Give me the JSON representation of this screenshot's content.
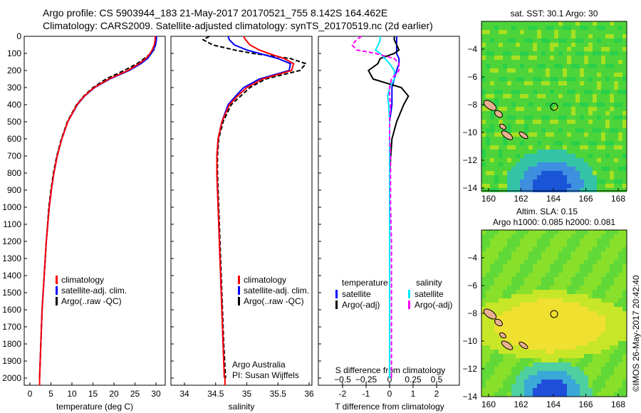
{
  "header": {
    "line1": "Argo profile: CS 5903944_183 21-May-2017 20170521_755 8.142S 164.462E",
    "line2": "Climatology: CARS2009. Satellite-adjusted climatology: synTS_20170519.nc (2d earlier)"
  },
  "footer": {
    "credit": "Argo Australia",
    "pi": "PI: Susan Wijffels",
    "stamp": "©IMOS 26-May-2017 20:42:40"
  },
  "colors": {
    "climatology": "#ff0000",
    "satellite": "#0000ff",
    "argo": "#000000",
    "sal_sat": "#00e5ff",
    "sal_argo": "#ff00ff"
  },
  "chart_data": [
    {
      "type": "line",
      "title": "",
      "xlabel": "temperature (deg C)",
      "ylabel": "",
      "xlim": [
        -2,
        31
      ],
      "ylim": [
        2050,
        0
      ],
      "xticks": [
        "0",
        "5",
        "10",
        "15",
        "20",
        "25",
        "30"
      ],
      "yticks": [
        "0",
        "100",
        "200",
        "300",
        "400",
        "500",
        "600",
        "700",
        "800",
        "900",
        "1000",
        "1100",
        "1200",
        "1300",
        "1400",
        "1500",
        "1600",
        "1700",
        "1800",
        "1900",
        "2000"
      ],
      "legend": [
        "climatology",
        "satellite-adj. clim.",
        "Argo(..raw -QC)"
      ],
      "depth": [
        0,
        20,
        50,
        80,
        100,
        130,
        160,
        200,
        250,
        300,
        350,
        400,
        500,
        600,
        700,
        800,
        900,
        1000,
        1200,
        1400,
        1600,
        1800,
        2000
      ],
      "series": [
        {
          "name": "climatology",
          "values": [
            29.8,
            29.8,
            29.6,
            29.1,
            28.6,
            27.6,
            26.0,
            23.3,
            18.8,
            15.3,
            12.9,
            11.2,
            9.0,
            7.6,
            6.5,
            5.7,
            5.1,
            4.6,
            3.9,
            3.4,
            2.9,
            2.6,
            2.3
          ]
        },
        {
          "name": "satellite-adj. clim.",
          "values": [
            30.1,
            30.1,
            29.9,
            29.4,
            28.9,
            28.0,
            26.4,
            23.6,
            19.0,
            15.4,
            13.0,
            11.3,
            9.0,
            7.6,
            6.5,
            5.7,
            5.1,
            4.6,
            3.9,
            3.4,
            2.9,
            2.6,
            2.3
          ]
        },
        {
          "name": "Argo(..raw -QC)",
          "values": [
            30.0,
            30.0,
            29.9,
            29.5,
            28.8,
            27.2,
            25.5,
            22.4,
            18.1,
            15.0,
            12.8,
            11.1,
            8.9,
            7.5,
            6.4,
            5.6,
            5.0,
            4.5,
            3.9,
            3.4,
            2.9,
            2.6,
            2.3
          ]
        }
      ]
    },
    {
      "type": "line",
      "xlabel": "salinity",
      "xlim": [
        33.75,
        36.05
      ],
      "ylim": [
        2050,
        0
      ],
      "xticks": [
        "34",
        "34.5",
        "35",
        "35.5",
        "36"
      ],
      "legend": [
        "climatology",
        "satellite-adj. clim.",
        "Argo(..raw -QC)"
      ],
      "depth": [
        0,
        20,
        50,
        80,
        100,
        130,
        160,
        200,
        250,
        300,
        350,
        400,
        500,
        600,
        700,
        800,
        900,
        1000,
        1200,
        1400,
        1600,
        1800,
        2000
      ],
      "series": [
        {
          "name": "climatology",
          "values": [
            34.95,
            34.98,
            35.05,
            35.2,
            35.35,
            35.6,
            35.75,
            35.72,
            35.25,
            35.0,
            34.85,
            34.72,
            34.6,
            34.54,
            34.52,
            34.52,
            34.53,
            34.54,
            34.56,
            34.58,
            34.6,
            34.62,
            34.64
          ]
        },
        {
          "name": "satellite-adj. clim.",
          "values": [
            34.7,
            34.72,
            34.8,
            35.0,
            35.2,
            35.5,
            35.7,
            35.68,
            35.2,
            34.95,
            34.82,
            34.7,
            34.6,
            34.54,
            34.52,
            34.52,
            34.53,
            34.54,
            34.56,
            34.58,
            34.6,
            34.62,
            34.64
          ]
        },
        {
          "name": "Argo(..raw -QC)",
          "values": [
            34.4,
            34.3,
            34.45,
            34.8,
            35.1,
            35.7,
            35.95,
            35.85,
            35.3,
            35.05,
            34.9,
            34.75,
            34.62,
            34.55,
            34.53,
            34.53,
            34.54,
            34.55,
            34.57,
            34.59,
            34.61,
            34.63,
            34.66
          ]
        }
      ]
    },
    {
      "type": "line",
      "xlabel": "T difference from climatology",
      "x2label": "S difference from climatology",
      "xlim": [
        -3,
        3
      ],
      "ylim": [
        2050,
        0
      ],
      "xticks": [
        "-2",
        "-1",
        "0",
        "1",
        "2"
      ],
      "x2ticks": [
        "-0.5",
        "-0.25",
        "0",
        "0.25",
        "0.5"
      ],
      "legend_titles": [
        "temperature",
        "salinity"
      ],
      "legend": [
        "satellite",
        "Argo(-adj)",
        "satellite",
        "Argo(-adj)"
      ],
      "depth": [
        0,
        20,
        50,
        80,
        100,
        130,
        160,
        200,
        250,
        300,
        350,
        400,
        500,
        600,
        700,
        800,
        900,
        1000,
        1200,
        1400,
        1600,
        1800,
        2000
      ],
      "series": [
        {
          "name": "T satellite",
          "values": [
            0.3,
            0.3,
            0.3,
            0.3,
            0.3,
            0.4,
            0.4,
            0.3,
            0.2,
            0.1,
            0.1,
            0.1,
            0,
            0,
            0,
            0,
            0,
            0,
            0,
            0,
            0,
            0,
            0
          ]
        },
        {
          "name": "T Argo(-adj)",
          "values": [
            0.2,
            0.2,
            0.3,
            0.4,
            0.2,
            -0.4,
            -0.5,
            -0.9,
            -0.7,
            0.5,
            0.8,
            0.6,
            0.3,
            0.1,
            0.05,
            0,
            0,
            0,
            0,
            0,
            0,
            0,
            0
          ]
        },
        {
          "name": "S satellite",
          "values": [
            -0.1,
            -0.1,
            -0.12,
            -0.15,
            -0.1,
            -0.05,
            0.0,
            0.05,
            0.05,
            0.0,
            -0.02,
            -0.01,
            0,
            0,
            0,
            0,
            0,
            0,
            0,
            0,
            0,
            0,
            0
          ]
        },
        {
          "name": "S Argo(-adj)",
          "values": [
            -0.3,
            -0.35,
            -0.4,
            -0.35,
            -0.15,
            0.05,
            0.1,
            0.1,
            0.02,
            0.0,
            0.0,
            0.01,
            0.0,
            0.0,
            0.01,
            0.01,
            0.01,
            0.01,
            0.02,
            0.02,
            0.02,
            0.02,
            0.02
          ]
        }
      ]
    },
    {
      "type": "heatmap",
      "title": "sat. SST: 30.1  Argo: 30",
      "xticks": [
        "160",
        "162",
        "164",
        "166",
        "168"
      ],
      "yticks": [
        "-4",
        "-6",
        "-8",
        "-10",
        "-12",
        "-14"
      ]
    },
    {
      "type": "heatmap",
      "title": "Altim. SLA: 0.15",
      "subtitle": "Argo h1000: 0.085 h2000: 0.081",
      "xticks": [
        "160",
        "162",
        "164",
        "166",
        "168"
      ],
      "yticks": [
        "-4",
        "-6",
        "-8",
        "-10",
        "-12",
        "-14"
      ]
    }
  ]
}
